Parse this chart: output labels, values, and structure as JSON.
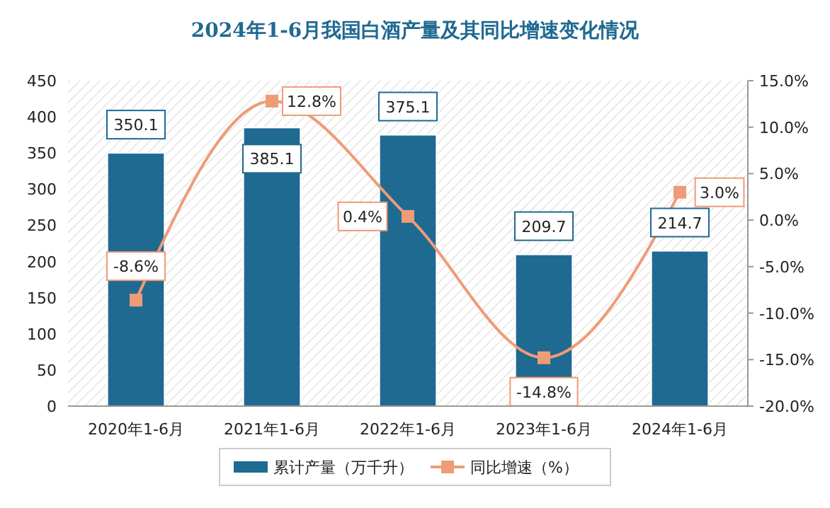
{
  "chart_data": {
    "type": "bar",
    "title": "2024年1-6月我国白酒产量及其同比增速变化情况",
    "categories": [
      "2020年1-6月",
      "2021年1-6月",
      "2022年1-6月",
      "2023年1-6月",
      "2024年1-6月"
    ],
    "series": [
      {
        "name": "累计产量（万千升）",
        "color": "#1f6a91",
        "values": [
          350.1,
          385.1,
          375.1,
          209.7,
          214.7
        ],
        "value_labels": [
          "350.1",
          "385.1",
          "375.1",
          "209.7",
          "214.7"
        ]
      },
      {
        "name": "同比增速（%）",
        "type": "line",
        "axis": "y2",
        "color": "#ee9c78",
        "marker": "square",
        "values": [
          -8.6,
          12.8,
          0.4,
          -14.8,
          3.0
        ],
        "value_labels": [
          "-8.6%",
          "12.8%",
          "0.4%",
          "-14.8%",
          "3.0%"
        ]
      }
    ],
    "ylim": [
      0,
      450
    ],
    "yticks": [
      0,
      50,
      100,
      150,
      200,
      250,
      300,
      350,
      400,
      450
    ],
    "y2lim": [
      -20,
      15
    ],
    "y2ticks": [
      {
        "value": -20,
        "label": "-20.0%"
      },
      {
        "value": -15,
        "label": "-15.0%"
      },
      {
        "value": -10,
        "label": "-10.0%"
      },
      {
        "value": -5,
        "label": "-5.0%"
      },
      {
        "value": 0,
        "label": "0.0%"
      },
      {
        "value": 5,
        "label": "5.0%"
      },
      {
        "value": 10,
        "label": "10.0%"
      },
      {
        "value": 15,
        "label": "15.0%"
      }
    ],
    "grid": false,
    "legend": "bottom"
  }
}
